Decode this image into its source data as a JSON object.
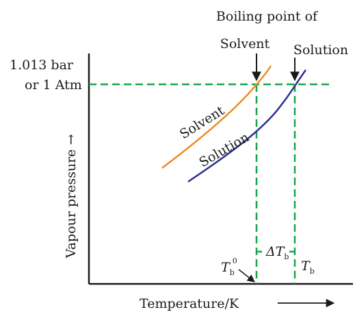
{
  "diagram": {
    "header": "Boiling point of",
    "pressure_label_line1": "1.013 bar",
    "pressure_label_line2": "or 1 Atm",
    "y_axis_label": "Vapour pressure →",
    "x_axis_label": "Temperature/K",
    "arrow_solvent_label": "Solvent",
    "arrow_solution_label": "Solution",
    "curve_solvent_label": "Solvent",
    "curve_solution_label": "Solution",
    "tb0": {
      "main": "T",
      "sub": "b",
      "sup": "0"
    },
    "tb": {
      "main": "T",
      "sub": "b"
    },
    "delta_tb": {
      "main": "ΔT",
      "sub": "b"
    }
  },
  "colors": {
    "solvent_curve": "#f08a24",
    "solution_curve": "#2a2f8f",
    "guide_lines": "#17a34a",
    "axes": "#1a1a1a",
    "text": "#1a1a1a"
  }
}
